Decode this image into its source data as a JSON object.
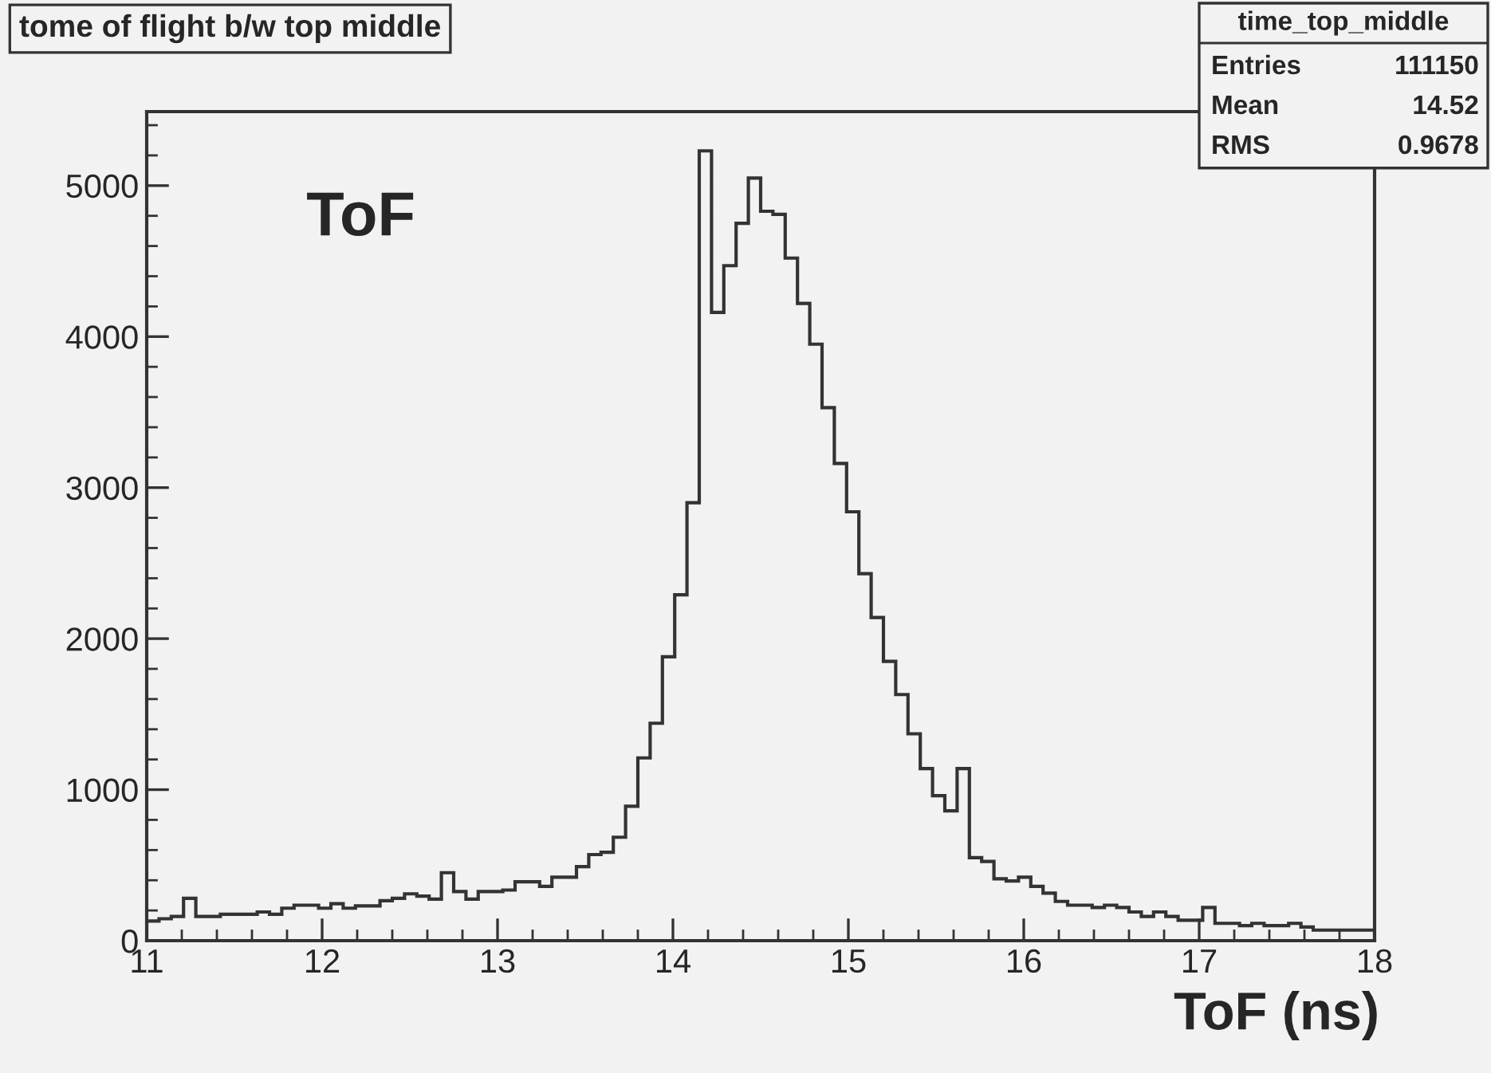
{
  "chart_data": {
    "type": "histogram",
    "title": "tome of flight b/w top middle",
    "xlabel": "ToF (ns)",
    "annotations": [
      "ToF",
      "time_top_middle",
      "Entries 111150",
      "Mean 14.52",
      "RMS 0.9678"
    ],
    "bins": [
      11,
      11.07,
      11.14,
      11.21,
      11.28,
      11.35,
      11.42,
      11.49,
      11.56,
      11.63,
      11.7,
      11.77,
      11.84,
      11.91,
      11.98,
      12.05,
      12.12,
      12.19,
      12.26,
      12.33,
      12.4,
      12.47,
      12.54,
      12.61,
      12.68,
      12.75,
      12.82,
      12.89,
      12.96,
      13.03,
      13.1,
      13.17,
      13.24,
      13.31,
      13.38,
      13.45,
      13.52,
      13.59,
      13.66,
      13.73,
      13.8,
      13.87,
      13.94,
      14.01,
      14.08,
      14.15,
      14.22,
      14.29,
      14.36,
      14.43,
      14.5,
      14.57,
      14.64,
      14.71,
      14.78,
      14.85,
      14.92,
      14.99,
      15.06,
      15.13,
      15.2,
      15.27,
      15.34,
      15.41,
      15.48,
      15.55,
      15.62,
      15.69,
      15.76,
      15.83,
      15.9,
      15.97,
      16.04,
      16.11,
      16.18,
      16.25,
      16.32,
      16.39,
      16.46,
      16.53,
      16.6,
      16.67,
      16.74,
      16.81,
      16.88,
      16.95,
      17.02,
      17.09,
      17.16,
      17.23,
      17.3,
      17.37,
      17.44,
      17.51,
      17.58,
      17.65,
      17.72,
      17.79,
      17.86,
      17.93,
      18
    ],
    "values": [
      130,
      145,
      160,
      280,
      160,
      160,
      175,
      175,
      175,
      190,
      175,
      215,
      235,
      235,
      215,
      245,
      215,
      230,
      230,
      265,
      280,
      310,
      295,
      275,
      450,
      325,
      275,
      325,
      325,
      335,
      390,
      390,
      360,
      420,
      420,
      490,
      570,
      585,
      685,
      890,
      1210,
      1440,
      1880,
      2290,
      2900,
      5230,
      4160,
      4470,
      4750,
      5050,
      4830,
      4810,
      4520,
      4220,
      3950,
      3530,
      3160,
      2840,
      2430,
      2140,
      1850,
      1630,
      1370,
      1140,
      960,
      860,
      1140,
      550,
      525,
      410,
      395,
      420,
      360,
      315,
      260,
      235,
      235,
      220,
      235,
      220,
      190,
      160,
      190,
      160,
      135,
      135,
      220,
      115,
      115,
      100,
      115,
      100,
      100,
      115,
      90,
      70,
      70,
      70,
      70,
      70
    ],
    "color": "#333333",
    "xlim": [
      11,
      18
    ],
    "xticks": [
      11,
      12,
      13,
      14,
      15,
      16,
      17,
      18
    ],
    "ylim": [
      0,
      5490
    ],
    "yticks": [
      0,
      1000,
      2000,
      3000,
      4000,
      5000
    ],
    "grid": false,
    "legend": false
  }
}
